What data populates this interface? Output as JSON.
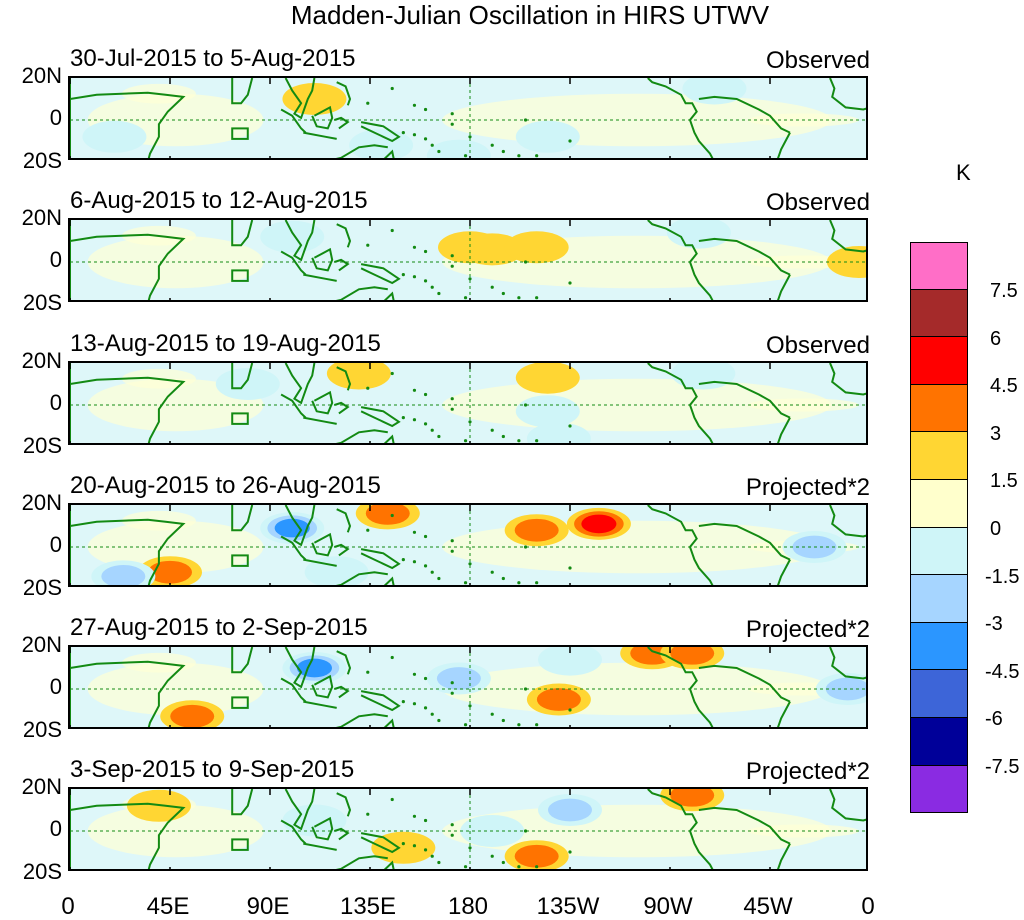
{
  "chart_data": {
    "type": "heatmap",
    "title": "Madden-Julian Oscillation in HIRS UTWV",
    "units": "K",
    "lat_ticks": [
      "20N",
      "0",
      "20S"
    ],
    "lon_ticks": [
      "0",
      "45E",
      "90E",
      "135E",
      "180",
      "135W",
      "90W",
      "45W",
      "0"
    ],
    "lon_tick_values": [
      0,
      45,
      90,
      135,
      180,
      225,
      270,
      315,
      360
    ],
    "xlim": [
      0,
      360
    ],
    "ylim": [
      -20,
      20
    ],
    "colorbar": {
      "labels": [
        "7.5",
        "6",
        "4.5",
        "3",
        "1.5",
        "0",
        "-1.5",
        "-3",
        "-4.5",
        "-6",
        "-7.5"
      ],
      "colors": [
        "#ff6ec7",
        "#a52a2a",
        "#ff0000",
        "#ff7300",
        "#ffd633",
        "#ffffcc",
        "#cff5f8",
        "#a6d5ff",
        "#2b96ff",
        "#3d65d8",
        "#000099",
        "#8a2be2"
      ]
    },
    "panels": [
      {
        "dates": "30-Jul-2015 to 5-Aug-2015",
        "type": "Observed"
      },
      {
        "dates": "6-Aug-2015 to 12-Aug-2015",
        "type": "Observed"
      },
      {
        "dates": "13-Aug-2015 to 19-Aug-2015",
        "type": "Observed"
      },
      {
        "dates": "20-Aug-2015 to 26-Aug-2015",
        "type": "Projected*2"
      },
      {
        "dates": "27-Aug-2015 to 2-Sep-2015",
        "type": "Projected*2"
      },
      {
        "dates": "3-Sep-2015 to 9-Sep-2015",
        "type": "Projected*2"
      }
    ],
    "anomaly_regions": [
      [
        {
          "lon": 110,
          "lat": 10,
          "value": 1.5
        },
        {
          "lon": 20,
          "lat": -8,
          "value": -0.5
        },
        {
          "lon": 215,
          "lat": -8,
          "value": -1.5
        },
        {
          "lon": 290,
          "lat": 15,
          "value": -1.5
        },
        {
          "lon": 140,
          "lat": -12,
          "value": -1.5
        },
        {
          "lon": 175,
          "lat": -17,
          "value": -1.5
        }
      ],
      [
        {
          "lon": 180,
          "lat": 7,
          "value": 1.5
        },
        {
          "lon": 190,
          "lat": 6,
          "value": 1.5
        },
        {
          "lon": 210,
          "lat": 7,
          "value": 1.5
        },
        {
          "lon": 283,
          "lat": 14,
          "value": -1.5
        },
        {
          "lon": 355,
          "lat": 0,
          "value": 1.5
        },
        {
          "lon": 100,
          "lat": 12,
          "value": -0.5
        }
      ],
      [
        {
          "lon": 80,
          "lat": 10,
          "value": -1.5
        },
        {
          "lon": 215,
          "lat": 13,
          "value": 1.5
        },
        {
          "lon": 215,
          "lat": -3,
          "value": -1.5
        },
        {
          "lon": 220,
          "lat": -16,
          "value": -1.5
        },
        {
          "lon": 285,
          "lat": 15,
          "value": -1.5
        },
        {
          "lon": 130,
          "lat": 15,
          "value": 1.5
        }
      ],
      [
        {
          "lon": 100,
          "lat": 9,
          "value": -4.5
        },
        {
          "lon": 238,
          "lat": 11,
          "value": 4.5
        },
        {
          "lon": 143,
          "lat": 16,
          "value": 3
        },
        {
          "lon": 210,
          "lat": 8,
          "value": 3
        },
        {
          "lon": 45,
          "lat": -12,
          "value": 3
        },
        {
          "lon": 335,
          "lat": 0,
          "value": -3
        },
        {
          "lon": 24,
          "lat": -14,
          "value": -3
        },
        {
          "lon": 120,
          "lat": -12,
          "value": -1.5
        }
      ],
      [
        {
          "lon": 110,
          "lat": 10,
          "value": -4.5
        },
        {
          "lon": 262,
          "lat": 17,
          "value": 3
        },
        {
          "lon": 280,
          "lat": 17,
          "value": 3
        },
        {
          "lon": 175,
          "lat": 5,
          "value": -3
        },
        {
          "lon": 220,
          "lat": -5,
          "value": 3
        },
        {
          "lon": 55,
          "lat": -13,
          "value": 3
        },
        {
          "lon": 350,
          "lat": 0,
          "value": -3
        },
        {
          "lon": 225,
          "lat": 14,
          "value": -1.5
        }
      ],
      [
        {
          "lon": 110,
          "lat": 5,
          "value": -1.5
        },
        {
          "lon": 280,
          "lat": 17,
          "value": 3
        },
        {
          "lon": 225,
          "lat": 10,
          "value": -3
        },
        {
          "lon": 210,
          "lat": -12,
          "value": 3
        },
        {
          "lon": 40,
          "lat": 12,
          "value": 1.5
        },
        {
          "lon": 150,
          "lat": -8,
          "value": 1.5
        },
        {
          "lon": 190,
          "lat": 0,
          "value": -1.5
        }
      ]
    ]
  }
}
